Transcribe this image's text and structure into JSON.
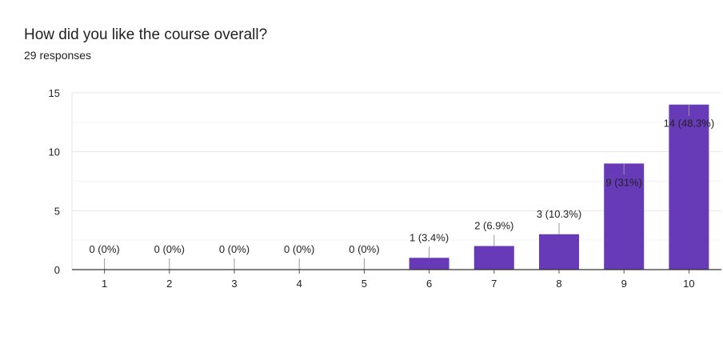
{
  "question": "How did you like the course overall?",
  "responses": "29 responses",
  "colors": {
    "bar": "#673ab7",
    "grid": "#e8e8e8",
    "axis": "#333333"
  },
  "chart_data": {
    "type": "bar",
    "categories": [
      "1",
      "2",
      "3",
      "4",
      "5",
      "6",
      "7",
      "8",
      "9",
      "10"
    ],
    "values": [
      0,
      0,
      0,
      0,
      0,
      1,
      2,
      3,
      9,
      14
    ],
    "data_labels": [
      "0 (0%)",
      "0 (0%)",
      "0 (0%)",
      "0 (0%)",
      "0 (0%)",
      "1 (3.4%)",
      "2 (6.9%)",
      "3 (10.3%)",
      "9 (31%)",
      "14 (48.3%)"
    ],
    "ylim": [
      0,
      15
    ],
    "yticks": [
      0,
      5,
      10,
      15
    ],
    "grid": true,
    "xlabel": "",
    "ylabel": ""
  }
}
